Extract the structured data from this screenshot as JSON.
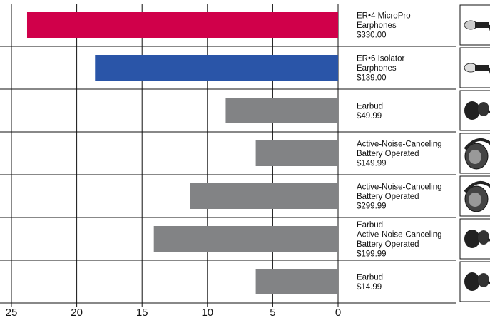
{
  "chart_data": {
    "type": "bar",
    "orientation": "horizontal",
    "x_direction": "reversed",
    "xlim": [
      0,
      25
    ],
    "xticks": [
      "25",
      "20",
      "15",
      "10",
      "5",
      "0"
    ],
    "xlabel": "",
    "ylabel": "",
    "title": "",
    "grid": true,
    "categories": [
      [
        "ER•4 MicroPro",
        "Earphones",
        "$330.00"
      ],
      [
        "ER•6 Isolator",
        "Earphones",
        "$139.00"
      ],
      [
        "Earbud",
        "$49.99"
      ],
      [
        "Active-Noise-Canceling",
        "Battery Operated",
        "$149.99"
      ],
      [
        "Active-Noise-Canceling",
        "Battery Operated",
        "$299.99"
      ],
      [
        "Earbud",
        "Active-Noise-Canceling",
        "Battery Operated",
        "$199.99"
      ],
      [
        "Earbud",
        "$14.99"
      ]
    ],
    "values": [
      23.8,
      18.6,
      8.6,
      6.3,
      11.3,
      14.1,
      6.3
    ],
    "colors": [
      "#d0004a",
      "#2a55a8",
      "#828385",
      "#828385",
      "#828385",
      "#828385",
      "#828385"
    ],
    "icons": [
      "er4-earphone-icon",
      "er6-earphone-icon",
      "earbud-icon",
      "headphone-icon",
      "headphone-icon",
      "earbud-icon",
      "earbud-icon"
    ]
  }
}
